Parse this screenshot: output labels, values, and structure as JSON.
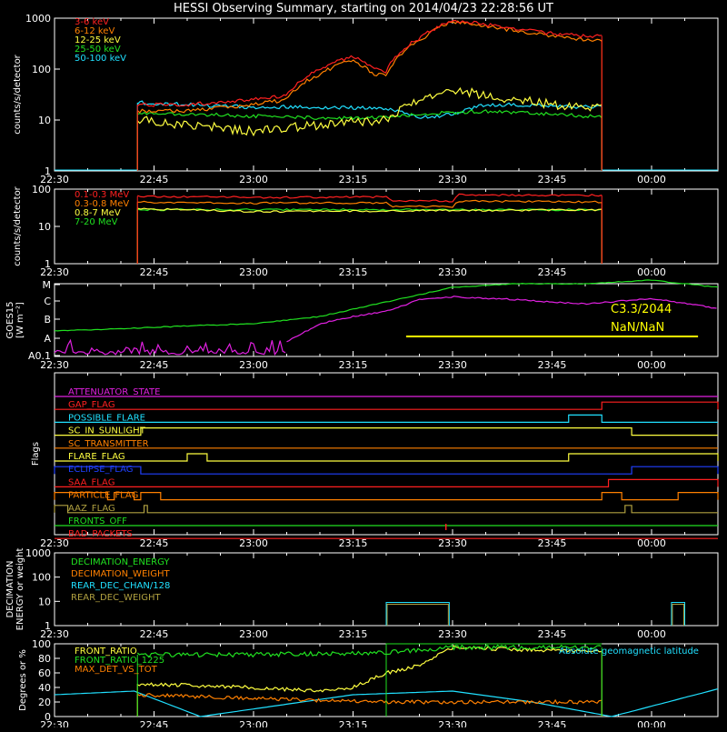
{
  "title": "HESSI Observing Summary, starting on 2014/04/23 22:28:56 UT",
  "time_ticks": [
    "22:30",
    "22:45",
    "23:00",
    "23:15",
    "23:30",
    "23:45",
    "00:00"
  ],
  "panels": {
    "low_energy": {
      "ylabel": "counts/s/detector",
      "yticks": [
        "1",
        "10",
        "100",
        "1000"
      ],
      "legend": [
        {
          "label": "3-6 keV",
          "color": "#ff2020"
        },
        {
          "label": "6-12 keV",
          "color": "#ff8000"
        },
        {
          "label": "12-25 keV",
          "color": "#ffff40"
        },
        {
          "label": "25-50 keV",
          "color": "#20e020"
        },
        {
          "label": "50-100 keV",
          "color": "#20e0ff"
        }
      ]
    },
    "high_energy": {
      "ylabel": "counts/s/detector",
      "yticks": [
        "1",
        "10",
        "100"
      ],
      "legend": [
        {
          "label": "0.1-0.3 MeV",
          "color": "#ff2020"
        },
        {
          "label": "0.3-0.8 MeV",
          "color": "#ff8000"
        },
        {
          "label": "0.8-7 MeV",
          "color": "#ffff40"
        },
        {
          "label": "7-20 MeV",
          "color": "#20e020"
        }
      ]
    },
    "goes": {
      "ylabel": "GOES15",
      "ylabel2": "[W m⁻²]",
      "yticks": [
        "A0.1",
        "A",
        "B",
        "C",
        "M"
      ],
      "annotation1": "C3.3/2044",
      "annotation2": "NaN/NaN"
    },
    "flags": {
      "ylabel": "Flags",
      "items": [
        {
          "label": "ATTENUATOR_STATE",
          "color": "#e020e0"
        },
        {
          "label": "GAP_FLAG",
          "color": "#ff2020"
        },
        {
          "label": "POSSIBLE_FLARE",
          "color": "#20e0ff"
        },
        {
          "label": "SC_IN_SUNLIGHT",
          "color": "#ffff40"
        },
        {
          "label": "SC_TRANSMITTER",
          "color": "#ff8000"
        },
        {
          "label": "FLARE_FLAG",
          "color": "#ffff40"
        },
        {
          "label": "ECLIPSE_FLAG",
          "color": "#2040ff"
        },
        {
          "label": "SAA_FLAG",
          "color": "#ff2020"
        },
        {
          "label": "PARTICLE_FLAG",
          "color": "#ff8000"
        },
        {
          "label": "AAZ_FLAG",
          "color": "#b0a040"
        },
        {
          "label": "FRONTS_OFF",
          "color": "#20e020"
        },
        {
          "label": "BAD_PACKETS",
          "color": "#ff2020"
        }
      ]
    },
    "decimation": {
      "ylabel": "DECIMATION",
      "ylabel2": "ENERGY or weight",
      "yticks": [
        "1",
        "10",
        "100",
        "1000"
      ],
      "legend": [
        {
          "label": "DECIMATION_ENERGY",
          "color": "#20e020"
        },
        {
          "label": "DECIMATION_WEIGHT",
          "color": "#ff8000"
        },
        {
          "label": "REAR_DEC_CHAN/128",
          "color": "#20e0ff"
        },
        {
          "label": "REAR_DEC_WEIGHT",
          "color": "#b0a040"
        }
      ]
    },
    "ratio": {
      "ylabel": "Degrees or %",
      "yticks": [
        "0",
        "20",
        "40",
        "60",
        "80",
        "100"
      ],
      "legend": [
        {
          "label": "FRONT_RATIO",
          "color": "#ffff40"
        },
        {
          "label": "FRONT_RATIO_1225",
          "color": "#20e020"
        },
        {
          "label": "MAX_DET_VS_TOT",
          "color": "#ff8000"
        }
      ],
      "legend_right": {
        "label": "Absolute geomagnetic latitude",
        "color": "#20e0ff"
      }
    }
  },
  "chart_data": [
    {
      "type": "line",
      "title": "HESSI Observing Summary, starting on 2014/04/23 22:28:56 UT",
      "ylabel": "counts/s/detector",
      "ylog": true,
      "ylim": [
        1,
        1000
      ],
      "xlim_minutes_since_22:30": [
        0,
        100
      ],
      "series": [
        {
          "name": "3-6 keV",
          "x": [
            12.5,
            20,
            30,
            35,
            40,
            45,
            48,
            50,
            55,
            60,
            65,
            70,
            75,
            80,
            82.5
          ],
          "y": [
            20,
            20,
            25,
            30,
            100,
            180,
            100,
            90,
            400,
            900,
            750,
            600,
            500,
            450,
            450
          ]
        },
        {
          "name": "6-12 keV",
          "x": [
            12.5,
            20,
            30,
            35,
            40,
            45,
            48,
            50,
            55,
            60,
            65,
            70,
            75,
            80,
            82.5
          ],
          "y": [
            15,
            15,
            20,
            25,
            80,
            150,
            80,
            75,
            350,
            850,
            700,
            550,
            450,
            380,
            380
          ]
        },
        {
          "name": "12-25 keV",
          "x": [
            12.5,
            20,
            30,
            40,
            50,
            55,
            58,
            60,
            65,
            70,
            75,
            80,
            82.5
          ],
          "y": [
            10,
            8,
            6,
            8,
            10,
            25,
            35,
            40,
            30,
            25,
            20,
            18,
            18
          ]
        },
        {
          "name": "25-50 keV",
          "x": [
            12.5,
            20,
            30,
            40,
            50,
            55,
            60,
            65,
            70,
            75,
            80,
            82.5
          ],
          "y": [
            14,
            13,
            12,
            11,
            11,
            13,
            14,
            15,
            14,
            13,
            12,
            12
          ]
        },
        {
          "name": "50-100 keV",
          "x": [
            12.5,
            20,
            30,
            40,
            50,
            55,
            60,
            65,
            70,
            75,
            80,
            82.5
          ],
          "y": [
            22,
            20,
            18,
            18,
            17,
            11,
            13,
            20,
            20,
            19,
            18,
            18
          ]
        }
      ]
    },
    {
      "type": "line",
      "ylabel": "counts/s/detector",
      "ylog": true,
      "ylim": [
        1,
        100
      ],
      "series": [
        {
          "name": "0.1-0.3 MeV",
          "x": [
            12.5,
            30,
            50,
            51,
            60,
            61,
            82.5
          ],
          "y": [
            65,
            60,
            62,
            48,
            48,
            70,
            68
          ]
        },
        {
          "name": "0.3-0.8 MeV",
          "x": [
            12.5,
            30,
            50,
            51,
            60,
            61,
            82.5
          ],
          "y": [
            45,
            42,
            43,
            34,
            34,
            48,
            45
          ]
        },
        {
          "name": "0.8-7 MeV",
          "x": [
            12.5,
            30,
            50,
            82.5
          ],
          "y": [
            30,
            25,
            26,
            28
          ]
        },
        {
          "name": "7-20 MeV",
          "x": [
            12.5,
            82.5
          ],
          "y": [
            28,
            28
          ]
        }
      ]
    },
    {
      "type": "line",
      "ylabel": "GOES15 [W m-2]",
      "annotations": [
        "C3.3/2044",
        "NaN/NaN"
      ],
      "series": [
        {
          "name": "GOES long",
          "x": [
            0,
            10,
            20,
            30,
            40,
            50,
            60,
            70,
            80,
            90,
            100
          ],
          "y": [
            0.35,
            0.38,
            0.42,
            0.45,
            0.55,
            0.75,
            0.95,
            1.0,
            1.0,
            1.05,
            0.95
          ]
        },
        {
          "name": "GOES short",
          "x": [
            35,
            40,
            45,
            50,
            55,
            60,
            70,
            80,
            90,
            100
          ],
          "y": [
            0.2,
            0.45,
            0.55,
            0.62,
            0.78,
            0.82,
            0.78,
            0.72,
            0.8,
            0.66
          ]
        }
      ]
    },
    {
      "type": "line",
      "ylabel": "Degrees or %",
      "ylim": [
        0,
        100
      ],
      "series": [
        {
          "name": "FRONT_RATIO",
          "x": [
            12.5,
            30,
            40,
            45,
            50,
            55,
            60,
            70,
            82.5
          ],
          "y": [
            45,
            40,
            35,
            40,
            60,
            70,
            95,
            92,
            90
          ]
        },
        {
          "name": "FRONT_RATIO_1225",
          "x": [
            12.5,
            30,
            50,
            60,
            70,
            82.5
          ],
          "y": [
            85,
            85,
            88,
            95,
            95,
            95
          ]
        },
        {
          "name": "MAX_DET_VS_TOT",
          "x": [
            12.5,
            20,
            30,
            40,
            50,
            60,
            70,
            82.5
          ],
          "y": [
            30,
            28,
            25,
            22,
            20,
            20,
            20,
            20
          ]
        },
        {
          "name": "Absolute geomagnetic latitude",
          "x": [
            0,
            12,
            22,
            45,
            60,
            72,
            84,
            100
          ],
          "y": [
            30,
            35,
            0,
            30,
            35,
            20,
            0,
            38
          ]
        }
      ]
    }
  ]
}
